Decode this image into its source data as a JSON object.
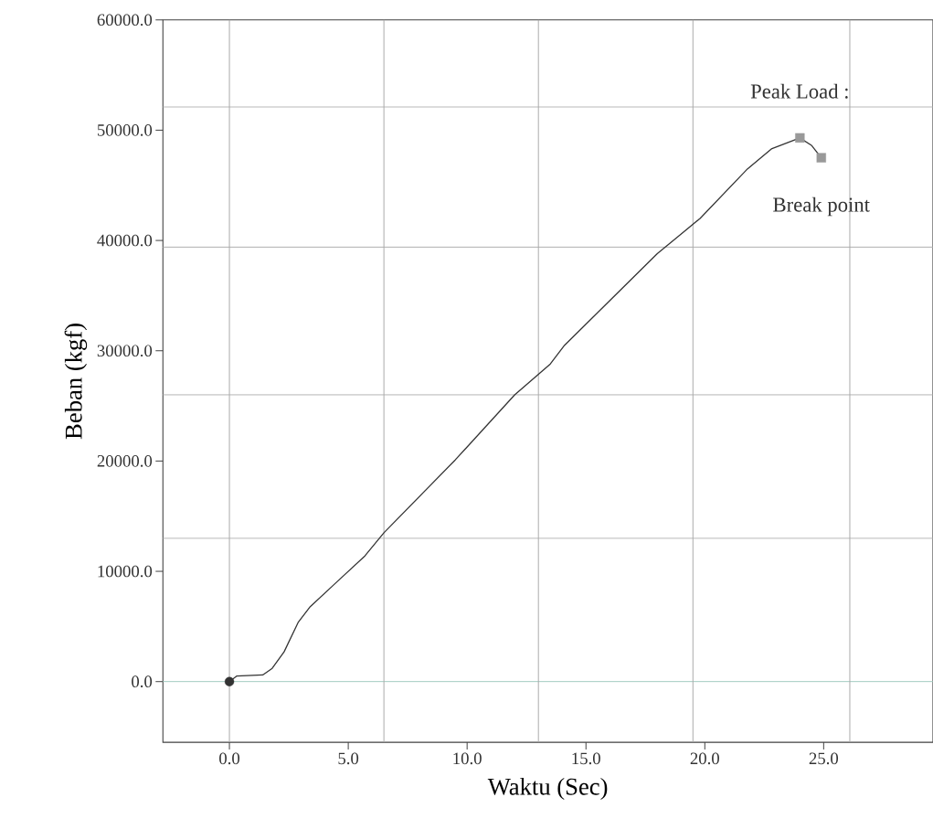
{
  "chart_data": {
    "type": "line",
    "xlabel": "Waktu (Sec)",
    "ylabel": "Beban (kgf)",
    "xlim": [
      -2.8,
      29.6
    ],
    "ylim": [
      -5500,
      60000
    ],
    "xticks": [
      {
        "value": 0,
        "label": "0.0"
      },
      {
        "value": 5,
        "label": "5.0"
      },
      {
        "value": 10,
        "label": "10.0"
      },
      {
        "value": 15,
        "label": "15.0"
      },
      {
        "value": 20,
        "label": "20.0"
      },
      {
        "value": 25,
        "label": "25.0"
      }
    ],
    "yticks": [
      {
        "value": 0,
        "label": "0.0"
      },
      {
        "value": 10000,
        "label": "10000.0"
      },
      {
        "value": 20000,
        "label": "20000.0"
      },
      {
        "value": 30000,
        "label": "30000.0"
      },
      {
        "value": 40000,
        "label": "40000.0"
      },
      {
        "value": 50000,
        "label": "50000.0"
      },
      {
        "value": 60000,
        "label": "60000.0"
      }
    ],
    "grid": false,
    "series": [
      {
        "color": "#333333",
        "line_style": "solid",
        "marker": "none",
        "x": [
          0,
          0.3,
          1.4,
          1.8,
          2.3,
          2.9,
          3.4,
          4.5,
          5.7,
          6.5,
          8.0,
          9.5,
          12.0,
          13.5,
          14.1,
          18.0,
          19.8,
          21.8,
          22.8,
          24.0,
          24.5,
          24.9
        ],
        "values": [
          0,
          500,
          600,
          1200,
          2700,
          5400,
          6800,
          9000,
          11400,
          13500,
          16800,
          20100,
          26000,
          28800,
          30500,
          38800,
          42000,
          46500,
          48300,
          49300,
          48600,
          47500
        ]
      },
      {
        "type": "scatter",
        "color": "#333333",
        "marker": "circle",
        "x": [
          0
        ],
        "values": [
          0
        ]
      },
      {
        "type": "scatter",
        "color": "#999999",
        "marker": "square",
        "x": [
          24.0,
          24.9
        ],
        "values": [
          49300,
          47500
        ]
      }
    ],
    "ref_lines": [
      {
        "axis": "y",
        "value": 0,
        "color": "#9cc9bd"
      },
      {
        "axis": "y",
        "value": 13000,
        "color": "#aaaaaa"
      },
      {
        "axis": "y",
        "value": 26000,
        "color": "#aaaaaa"
      },
      {
        "axis": "y",
        "value": 39400,
        "color": "#aaaaaa"
      },
      {
        "axis": "y",
        "value": 52100,
        "color": "#aaaaaa"
      },
      {
        "axis": "x",
        "value": 0,
        "color": "#aaaaaa"
      },
      {
        "axis": "x",
        "value": 6.5,
        "color": "#aaaaaa"
      },
      {
        "axis": "x",
        "value": 13,
        "color": "#aaaaaa"
      },
      {
        "axis": "x",
        "value": 19.5,
        "color": "#aaaaaa"
      },
      {
        "axis": "x",
        "value": 26.1,
        "color": "#aaaaaa"
      }
    ],
    "annotations": [
      {
        "text": "Peak Load :",
        "x": 24.0,
        "y": 49300
      },
      {
        "text": "Break point",
        "x": 24.9,
        "y": 47500
      }
    ]
  }
}
